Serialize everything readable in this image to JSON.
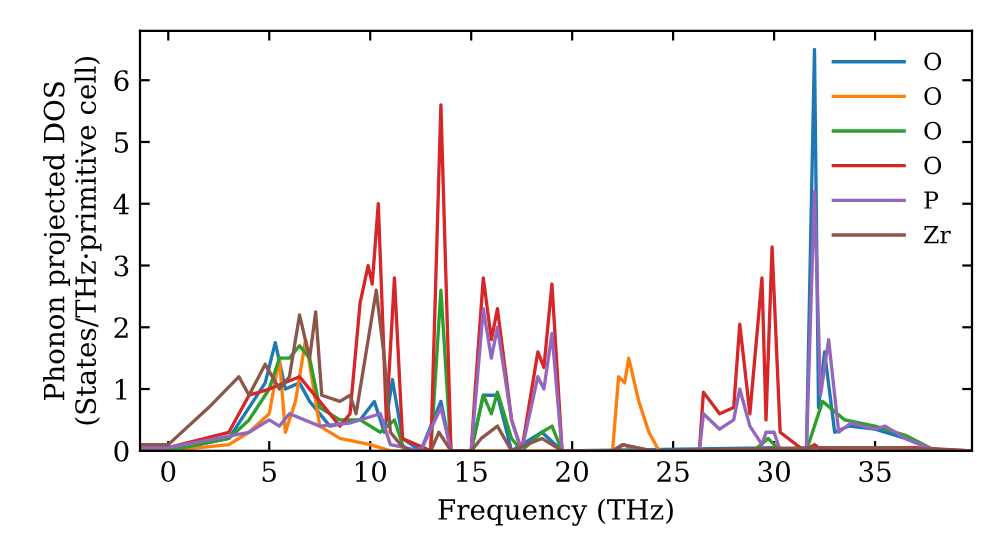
{
  "chart_data": {
    "type": "line",
    "xlabel": "Frequency (THz)",
    "ylabel": "Phonon projected DOS\n(States/THz·primitive cell)",
    "xlim": [
      -1.4,
      39.8
    ],
    "ylim": [
      0,
      6.8
    ],
    "xticks": [
      0,
      5,
      10,
      15,
      20,
      25,
      30,
      35
    ],
    "yticks": [
      0,
      1,
      2,
      3,
      4,
      5,
      6
    ],
    "grid": false,
    "legend": "top right",
    "marker": "none",
    "line_style": "solid",
    "series": [
      {
        "name": "O",
        "color": "#1f77b4",
        "x": [
          -1.4,
          0,
          3,
          4,
          4.8,
          5.3,
          5.8,
          6.5,
          7,
          8,
          9.5,
          10.2,
          10.7,
          11.1,
          11.6,
          12.5,
          13.5,
          14,
          15,
          15.6,
          16.3,
          17,
          18.5,
          19.5,
          30,
          31.6,
          32,
          32.2,
          32.5,
          33,
          33.7,
          35,
          36.5,
          38,
          39.8
        ],
        "values": [
          0,
          0,
          0.2,
          0.7,
          1.1,
          1.75,
          1.0,
          1.1,
          0.8,
          0.4,
          0.5,
          0.8,
          0.3,
          1.15,
          0.2,
          0,
          0.8,
          0,
          0,
          0.9,
          0.9,
          0,
          0.3,
          0,
          0.05,
          0,
          6.5,
          0.7,
          1.6,
          0.3,
          0.4,
          0.35,
          0.2,
          0,
          0
        ]
      },
      {
        "name": "O",
        "color": "#ff7f0e",
        "x": [
          -1.4,
          0,
          3,
          4,
          5,
          5.5,
          5.8,
          6.3,
          6.8,
          7.5,
          8.5,
          10,
          11,
          22,
          22.3,
          22.6,
          22.8,
          23.3,
          23.8,
          24.3,
          39.8
        ],
        "values": [
          0,
          0,
          0.1,
          0.3,
          0.6,
          1.5,
          0.3,
          0.8,
          1.8,
          0.4,
          0.2,
          0.1,
          0,
          0,
          1.2,
          1.1,
          1.5,
          0.8,
          0.3,
          0,
          0
        ]
      },
      {
        "name": "O",
        "color": "#2ca02c",
        "x": [
          -1.4,
          0,
          3,
          4,
          5,
          5.5,
          6,
          6.5,
          7,
          7.5,
          8.5,
          9.5,
          10.5,
          11.2,
          11.7,
          13,
          13.5,
          14,
          15,
          15.6,
          16,
          16.3,
          17,
          17.5,
          18.5,
          19,
          19.5,
          29,
          29.7,
          30.3,
          31.6,
          32.4,
          33.5,
          35,
          36.5,
          38,
          39.8
        ],
        "values": [
          0,
          0,
          0.2,
          0.5,
          1.0,
          1.5,
          1.5,
          1.7,
          1.5,
          0.7,
          0.5,
          0.5,
          0.3,
          0.5,
          0,
          0,
          2.6,
          0,
          0,
          0.9,
          0.6,
          0.95,
          0.2,
          0,
          0.3,
          0.4,
          0,
          0,
          0.2,
          0,
          0,
          0.8,
          0.5,
          0.4,
          0.25,
          0,
          0
        ]
      },
      {
        "name": "O",
        "color": "#d62728",
        "x": [
          -1.4,
          0,
          3,
          4,
          5,
          6.5,
          7.5,
          8.5,
          9,
          9.5,
          9.9,
          10.1,
          10.4,
          10.8,
          11.2,
          11.6,
          13,
          13.5,
          14,
          15,
          15.2,
          15.6,
          16,
          16.3,
          17,
          17.5,
          18.3,
          18.6,
          19,
          19.5,
          22.2,
          22.5,
          23.5,
          26.3,
          26.5,
          27.3,
          28,
          28.3,
          28.8,
          29.4,
          29.6,
          29.9,
          30.3,
          31.5,
          32,
          32.4,
          33,
          37,
          39.8
        ],
        "values": [
          0.05,
          0.05,
          0.3,
          0.9,
          1.0,
          1.2,
          0.8,
          0.4,
          0.6,
          2.4,
          3.0,
          2.7,
          4.0,
          0.5,
          2.8,
          0.2,
          0,
          5.6,
          0,
          0,
          1.0,
          2.8,
          1.8,
          2.3,
          0.5,
          0,
          1.6,
          1.35,
          2.7,
          0,
          0,
          0.1,
          0,
          0,
          0.95,
          0.6,
          0.7,
          2.05,
          0.6,
          2.8,
          0.5,
          3.3,
          0.3,
          0,
          0.1,
          0,
          0.05,
          0.05,
          0
        ]
      },
      {
        "name": "P",
        "color": "#9467bd",
        "x": [
          -1.4,
          0,
          4,
          5,
          5.5,
          6,
          7.5,
          9,
          10.5,
          11,
          12.5,
          13.5,
          14,
          15,
          15.6,
          16,
          16.3,
          17,
          17.5,
          18.3,
          18.6,
          19,
          19.5,
          22,
          22.5,
          23.5,
          26.3,
          26.5,
          27.3,
          28,
          28.3,
          28.8,
          29.4,
          29.6,
          30,
          30.3,
          31.6,
          32,
          32.3,
          32.7,
          33.2,
          33.8,
          35,
          35.5,
          36.5,
          38,
          39.8
        ],
        "values": [
          0.05,
          0.05,
          0.3,
          0.5,
          0.4,
          0.6,
          0.4,
          0.45,
          0.6,
          0.1,
          0,
          0.7,
          0,
          0,
          2.3,
          1.5,
          2.0,
          0.5,
          0,
          1.2,
          1.0,
          1.9,
          0,
          0,
          0.1,
          0,
          0,
          0.6,
          0.35,
          0.5,
          1.0,
          0.4,
          0.1,
          0.3,
          0.3,
          0,
          0,
          4.2,
          0.9,
          1.8,
          0.3,
          0.45,
          0.35,
          0.4,
          0.2,
          0,
          0
        ]
      },
      {
        "name": "Zr",
        "color": "#8c564b",
        "x": [
          -1.4,
          0,
          2,
          3.5,
          4,
          4.8,
          5.5,
          6,
          6.5,
          7,
          7.3,
          7.6,
          8.5,
          9,
          9.3,
          9.8,
          10.3,
          10.7,
          11,
          11.5,
          12,
          13,
          13.4,
          14,
          15,
          15.5,
          16.3,
          17,
          18.5,
          19.5,
          22,
          22.5,
          24,
          32,
          36,
          39.8
        ],
        "values": [
          0.1,
          0.1,
          0.7,
          1.2,
          0.9,
          1.4,
          1.0,
          1.2,
          2.2,
          1.5,
          2.25,
          0.9,
          0.8,
          0.9,
          0.6,
          1.6,
          2.6,
          1.5,
          0.3,
          0.1,
          0,
          0,
          0.3,
          0,
          0,
          0.2,
          0.4,
          0,
          0.2,
          0,
          0,
          0.1,
          0,
          0.05,
          0.05,
          0
        ]
      }
    ]
  }
}
